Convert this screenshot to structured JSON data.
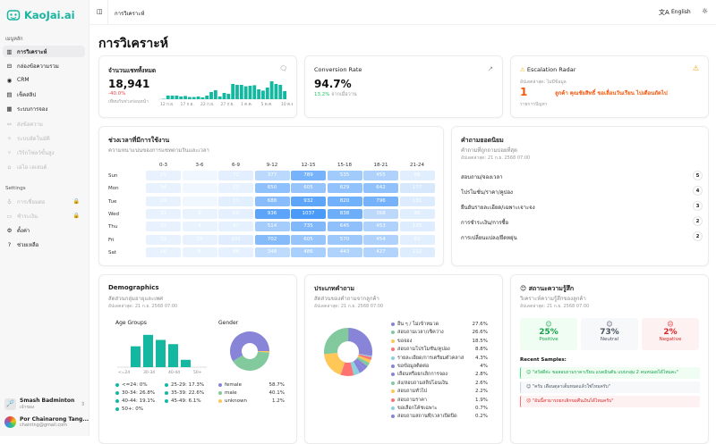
{
  "app": {
    "name": "KaoJai.ai"
  },
  "sidebar": {
    "main_label": "เมนูหลัก",
    "items": [
      {
        "label": "การวิเคราะห์",
        "icon": "bar-chart-icon",
        "state": "active"
      },
      {
        "label": "กล่องข้อความรวม",
        "icon": "inbox-icon",
        "state": "normal"
      },
      {
        "label": "CRM",
        "icon": "contacts-icon",
        "state": "normal"
      },
      {
        "label": "เช็คสลิป",
        "icon": "receipt-icon",
        "state": "normal"
      },
      {
        "label": "ระบบการจอง",
        "icon": "calendar-icon",
        "state": "normal"
      },
      {
        "label": "ส่งข้อความ",
        "icon": "broadcast-icon",
        "state": "disabled"
      },
      {
        "label": "ระบบอัตโนมัติ",
        "icon": "sparkle-icon",
        "state": "disabled"
      },
      {
        "label": "เวิร์กโฟลว์ขั้นสูง",
        "icon": "workflow-icon",
        "state": "disabled"
      },
      {
        "label": "เอไอ เอเจนต์",
        "icon": "bot-icon",
        "state": "disabled"
      }
    ],
    "settings_label": "Settings",
    "settings_items": [
      {
        "label": "การเชื่อมต่อ",
        "icon": "plug-icon",
        "state": "locked"
      },
      {
        "label": "ชำระเงิน",
        "icon": "credit-card-icon",
        "state": "locked"
      },
      {
        "label": "ตั้งค่า",
        "icon": "gear-icon",
        "state": "normal"
      },
      {
        "label": "ช่วยเหลือ",
        "icon": "help-icon",
        "state": "normal"
      }
    ],
    "org": {
      "name": "Smash Badminton",
      "role": "เจ้าของ"
    },
    "user": {
      "name": "Por Chainarong Tang...",
      "email": "chaintng@gmail.com"
    }
  },
  "topbar": {
    "breadcrumb": "การวิเคราะห์",
    "language": "English"
  },
  "page": {
    "title": "การวิเคราะห์"
  },
  "total_chats": {
    "title": "จำนวนแชททั้งหมด",
    "value": "18,941",
    "change": "-40.0%",
    "change_label": "เทียบกับช่วงก่อนหน้า",
    "chart_data": {
      "type": "bar",
      "x_ticks": [
        "12 ก.ย.",
        "17 ก.ย.",
        "22 ก.ย.",
        "27 ก.ย.",
        "1 ต.ค.",
        "5 ต.ค.",
        "10 ต.ค."
      ],
      "values": [
        2,
        20,
        20,
        20,
        15,
        18,
        12,
        12,
        15,
        10,
        20,
        40,
        50,
        15,
        35,
        30,
        85,
        80,
        80,
        72,
        75,
        78,
        55,
        48,
        65,
        100,
        85,
        80,
        45
      ],
      "color": "#14b8a0"
    }
  },
  "conversion": {
    "title": "Conversion Rate",
    "value": "94.7%",
    "change": "13.2%",
    "change_label": "จากเมื่อวาน"
  },
  "escalation": {
    "title": "Escalation Radar",
    "updated": "อัปเดตล่าสุด: ไม่มีข้อมูล",
    "count": "1",
    "count_label": "รายการปัญหา",
    "message": "ลูกค้า คุณชัยสิทธิ์ ขอเลื่อนวันเรียน ไปเดือนถัดไป",
    "color": "#f0590e"
  },
  "heatmap": {
    "title": "ช่วงเวลาที่มีการใช้งาน",
    "subtitle": "ความหนาแน่นของการแชทตามวันและเวลา",
    "chart_data": {
      "type": "heatmap",
      "columns": [
        "0-3",
        "3-6",
        "6-9",
        "9-12",
        "12-15",
        "15-18",
        "18-21",
        "21-24"
      ],
      "rows": [
        "Sun",
        "Mon",
        "Tue",
        "Wed",
        "Thu",
        "Fri",
        "Sat"
      ],
      "values": [
        [
          25,
          null,
          72,
          377,
          789,
          535,
          455,
          88
        ],
        [
          34,
          null,
          23,
          650,
          605,
          629,
          642,
          177
        ],
        [
          19,
          null,
          77,
          688,
          932,
          820,
          796,
          131
        ],
        [
          31,
          9,
          60,
          936,
          1037,
          838,
          368,
          96
        ],
        [
          22,
          4,
          47,
          514,
          735,
          645,
          453,
          125
        ],
        [
          31,
          23,
          105,
          702,
          605,
          570,
          454,
          83
        ],
        [
          16,
          8,
          44,
          348,
          486,
          443,
          427,
          112
        ]
      ],
      "color_low": "#e3efff",
      "color_high": "#4a9af8"
    }
  },
  "top_questions": {
    "title": "คำถามยอดนิยม",
    "subtitle": "คำถามที่ถูกถามบ่อยที่สุด",
    "updated": "อัปเดตล่าสุด: 21 ก.ย. 2568 07:00",
    "items": [
      {
        "label": "สอบถาม/จองเวลา",
        "count": "5"
      },
      {
        "label": "โปรโมชั่น/ราคา/คูปอง",
        "count": "4"
      },
      {
        "label": "ยืนยันรายละเอียด/เฉพาะเจาะจง",
        "count": "3"
      },
      {
        "label": "การชำระเงิน/การซื้อ",
        "count": "2"
      },
      {
        "label": "การเปลี่ยนแปลง/ยืดหยุ่น",
        "count": "2"
      }
    ]
  },
  "demographics": {
    "title": "Demographics",
    "subtitle": "สัดส่วนกลุ่มอายุและเพศ",
    "updated": "อัปเดตล่าสุด: 21 ก.ย. 2568 07:00",
    "age_title": "Age Groups",
    "gender_title": "Gender",
    "age_chart": {
      "type": "bar",
      "categories": [
        "<=24",
        "25-29",
        "30-34",
        "35-39",
        "40-44",
        "45-49",
        "50+"
      ],
      "values": [
        0,
        17.3,
        26.8,
        22.6,
        19.1,
        6.1,
        0
      ],
      "tick_labels": [
        "<=24",
        "30-34",
        "40-44",
        "50+"
      ],
      "color": "#14b8a0",
      "legend": [
        "<=24: 0%",
        "25-29: 17.3%",
        "30-34: 26.8%",
        "35-39: 22.6%",
        "40-44: 19.1%",
        "45-49: 6.1%",
        "50+: 0%"
      ]
    },
    "gender_chart": {
      "type": "pie",
      "labels": [
        "female",
        "male",
        "unknown"
      ],
      "values": [
        58.7,
        40.1,
        1.2
      ],
      "display": [
        "58.7%",
        "40.1%",
        "1.2%"
      ],
      "colors": [
        "#8884d8",
        "#82ca9d",
        "#ffc658"
      ]
    }
  },
  "categories": {
    "title": "ประเภทคำถาม",
    "subtitle": "สัดส่วนของคำถามจากลูกค้า",
    "updated": "อัปเดตล่าสุด: 21 ก.ย. 2568 07:00",
    "chart_data": {
      "type": "pie",
      "labels": [
        "อื่น ๆ / ไม่เข้าหมวด",
        "สอบถามเวลา/เช็คว่าง",
        "ขอจอง",
        "สอบถามโปรโมชั่น/คูปอง",
        "รายละเอียด/การเตรียมตัวคลาส",
        "ขอข้อมูลติดต่อ",
        "เลื่อนหรือยกเลิกการจอง",
        "ส่ง/สอบถามสลิปโอนเงิน",
        "สอบถามทั่วไป",
        "สอบถามราคา",
        "ขอเลือกโค้ชเฉพาะ",
        "สอบถามสถานที่/เวลาเปิดปิด"
      ],
      "values": [
        27.6,
        26.6,
        18.5,
        8.8,
        4.3,
        4,
        2.8,
        2.6,
        2.2,
        1.9,
        0.7,
        0.2
      ],
      "display": [
        "27.6%",
        "26.6%",
        "18.5%",
        "8.8%",
        "4.3%",
        "4%",
        "2.8%",
        "2.6%",
        "2.2%",
        "1.9%",
        "0.7%",
        "0.2%"
      ],
      "colors": [
        "#8884d8",
        "#82ca9d",
        "#ffc658",
        "#ff7373",
        "#8dd1e1",
        "#8884d8"
      ]
    }
  },
  "sentiment": {
    "title": "สถานะความรู้สึก",
    "subtitle": "วิเคราะห์ความรู้สึกของลูกค้า",
    "updated": "อัปเดตล่าสุด: 21 ก.ย. 2568 07:00",
    "positive": {
      "value": "25%",
      "label": "Positive"
    },
    "neutral": {
      "value": "73%",
      "label": "Neutral"
    },
    "negative": {
      "value": "2%",
      "label": "Negative"
    },
    "samples_label": "Recent Samples:",
    "samples": [
      {
        "text": "\"สวัสดีค่ะ ขอสอบถามราคาเรียน แบดมินตัน แบบกลุ่ม 2 คนหน่อยได้ไหมคะ\"",
        "sentiment": "positive"
      },
      {
        "text": "\"ครับ เดือนตุลาเต็มหมดแล้วใช่ไหมครับ\"",
        "sentiment": "neutral"
      },
      {
        "text": "\"อันนี้สามารถยกเลิกขอคืนเงินได้ไหมครับ\"",
        "sentiment": "negative"
      }
    ]
  }
}
